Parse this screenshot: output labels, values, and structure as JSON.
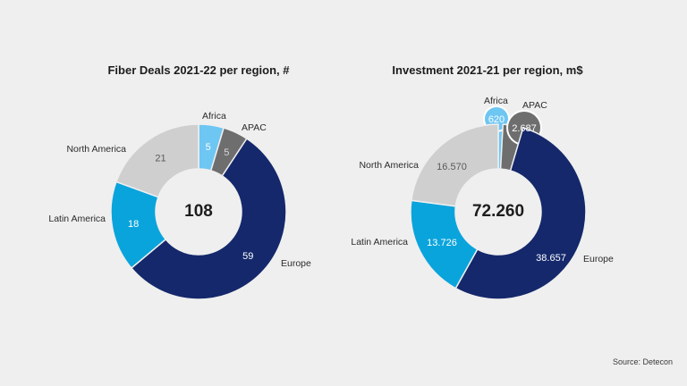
{
  "chart_data": [
    {
      "type": "pie",
      "title": "Fiber Deals 2021-22 per region, #",
      "total_label": "108",
      "slices": [
        {
          "label": "Africa",
          "value": 5,
          "value_label": "5",
          "color": "#6ec6f2",
          "text_color": "#ffffff"
        },
        {
          "label": "APAC",
          "value": 5,
          "value_label": "5",
          "color": "#6e6e6e",
          "text_color": "#d8d8d8"
        },
        {
          "label": "Europe",
          "value": 59,
          "value_label": "59",
          "color": "#14286b",
          "text_color": "#ffffff"
        },
        {
          "label": "Latin America",
          "value": 18,
          "value_label": "18",
          "color": "#0aa4dc",
          "text_color": "#ffffff"
        },
        {
          "label": "North America",
          "value": 21,
          "value_label": "21",
          "color": "#cfcfcf",
          "text_color": "#5a5a5a"
        }
      ]
    },
    {
      "type": "pie",
      "title": "Investment 2021-21 per region, m$",
      "total_label": "72.260",
      "slices": [
        {
          "label": "Africa",
          "value": 620,
          "value_label": "620",
          "color": "#6ec6f2",
          "text_color": "#ffffff"
        },
        {
          "label": "APAC",
          "value": 2687,
          "value_label": "2.687",
          "color": "#6e6e6e",
          "text_color": "#ffffff"
        },
        {
          "label": "Europe",
          "value": 38657,
          "value_label": "38.657",
          "color": "#14286b",
          "text_color": "#ffffff"
        },
        {
          "label": "Latin America",
          "value": 13726,
          "value_label": "13.726",
          "color": "#0aa4dc",
          "text_color": "#ffffff"
        },
        {
          "label": "North America",
          "value": 16570,
          "value_label": "16.570",
          "color": "#cfcfcf",
          "text_color": "#5a5a5a"
        }
      ]
    }
  ],
  "source": "Source: Detecon"
}
